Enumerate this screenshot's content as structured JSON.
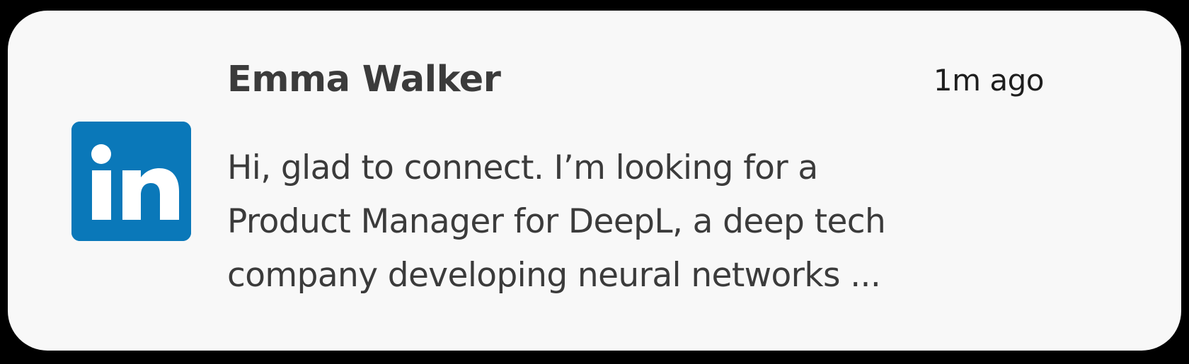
{
  "notification": {
    "app_icon": "linkedin-icon",
    "brand_color": "#0a78b9",
    "sender": "Emma Walker",
    "timestamp": "1m ago",
    "message_lines": [
      "Hi, glad to connect. I’m looking for a",
      "Product Manager for DeepL, a deep tech",
      "company developing neural networks ..."
    ]
  }
}
